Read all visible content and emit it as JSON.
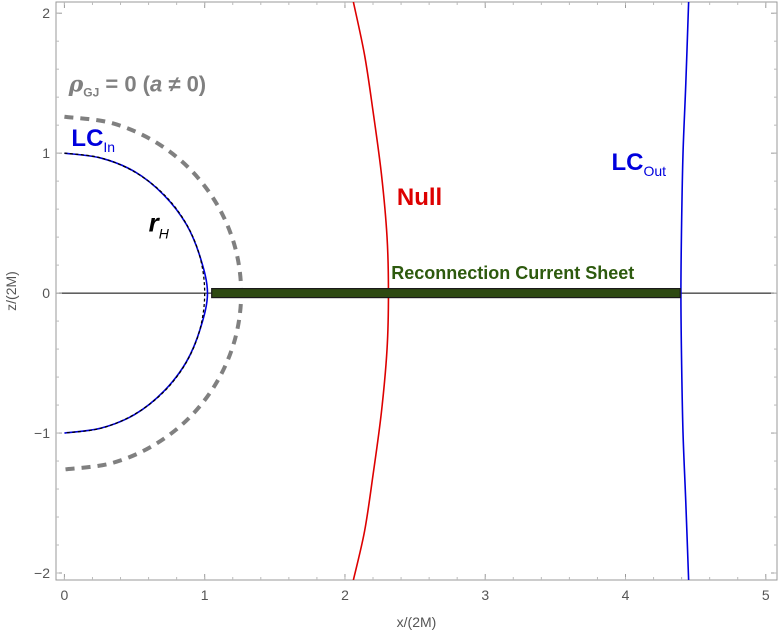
{
  "chart_data": {
    "type": "line",
    "xlabel": "x/(2M)",
    "ylabel": "z/(2M)",
    "xlim": [
      -0.06,
      5.08
    ],
    "ylim": [
      -2.05,
      2.08
    ],
    "x_ticks": [
      0,
      1,
      2,
      3,
      4,
      5
    ],
    "y_ticks": [
      -2,
      -1,
      0,
      1,
      2
    ],
    "grid": false,
    "colors": {
      "lc": "#0000dd",
      "null": "#dd0000",
      "horizon": "#000000",
      "rho_gj": "#808080",
      "sheet_fill": "#2e4a12",
      "sheet_edge": "#1a1a1a",
      "sheet_label": "#2d5a0e"
    },
    "series": [
      {
        "key": "lc_in",
        "style": "solid",
        "points": [
          [
            0,
            1.0
          ],
          [
            0.26,
            0.965
          ],
          [
            0.5,
            0.868
          ],
          [
            0.71,
            0.7
          ],
          [
            0.87,
            0.49
          ],
          [
            0.97,
            0.25
          ],
          [
            1.02,
            0.0
          ],
          [
            0.97,
            -0.25
          ],
          [
            0.87,
            -0.49
          ],
          [
            0.71,
            -0.7
          ],
          [
            0.5,
            -0.868
          ],
          [
            0.26,
            -0.965
          ],
          [
            0,
            -1.0
          ]
        ]
      },
      {
        "key": "horizon",
        "style": "dotted",
        "points": [
          [
            0,
            1.0
          ],
          [
            0.26,
            0.966
          ],
          [
            0.5,
            0.866
          ],
          [
            0.707,
            0.707
          ],
          [
            0.866,
            0.5
          ],
          [
            0.966,
            0.26
          ],
          [
            1.0,
            0.0
          ],
          [
            0.966,
            -0.26
          ],
          [
            0.866,
            -0.5
          ],
          [
            0.707,
            -0.707
          ],
          [
            0.5,
            -0.866
          ],
          [
            0.26,
            -0.966
          ],
          [
            0,
            -1.0
          ]
        ]
      },
      {
        "key": "rho_gj",
        "style": "dashed",
        "points": [
          [
            0,
            1.26
          ],
          [
            0.33,
            1.217
          ],
          [
            0.63,
            1.091
          ],
          [
            0.89,
            0.891
          ],
          [
            1.09,
            0.63
          ],
          [
            1.217,
            0.326
          ],
          [
            1.26,
            0.0
          ],
          [
            1.217,
            -0.326
          ],
          [
            1.09,
            -0.63
          ],
          [
            0.89,
            -0.891
          ],
          [
            0.63,
            -1.091
          ],
          [
            0.33,
            -1.217
          ],
          [
            0,
            -1.26
          ]
        ]
      },
      {
        "key": "null",
        "style": "solid",
        "points": [
          [
            2.06,
            2.08
          ],
          [
            2.14,
            1.7
          ],
          [
            2.2,
            1.3
          ],
          [
            2.26,
            0.85
          ],
          [
            2.3,
            0.4
          ],
          [
            2.31,
            0.0
          ],
          [
            2.3,
            -0.4
          ],
          [
            2.26,
            -0.85
          ],
          [
            2.2,
            -1.3
          ],
          [
            2.14,
            -1.7
          ],
          [
            2.06,
            -2.05
          ]
        ]
      },
      {
        "key": "lc_out",
        "style": "solid",
        "points": [
          [
            4.45,
            2.08
          ],
          [
            4.43,
            1.5
          ],
          [
            4.41,
            1.0
          ],
          [
            4.4,
            0.5
          ],
          [
            4.395,
            0.0
          ],
          [
            4.4,
            -0.5
          ],
          [
            4.41,
            -1.0
          ],
          [
            4.43,
            -1.5
          ],
          [
            4.45,
            -2.05
          ]
        ]
      }
    ],
    "current_sheet": {
      "x_start": 1.05,
      "x_end": 4.39,
      "z": 0
    },
    "annotations": {
      "rho_gj": {
        "symbol": "ρ",
        "subscript": "GJ",
        "rest": " = 0  (",
        "a": "a",
        "tail": " ≠ 0)",
        "x": 0.03,
        "z": 1.44
      },
      "lc_in": {
        "main": "LC",
        "subscript": "In",
        "x": 0.05,
        "z": 1.05
      },
      "r_h": {
        "main": "r",
        "subscript": "H",
        "x": 0.6,
        "z": 0.44
      },
      "null": {
        "text": "Null",
        "x": 2.37,
        "z": 0.63
      },
      "lc_out": {
        "main": "LC",
        "subscript": "Out",
        "x": 3.9,
        "z": 0.88
      },
      "sheet": {
        "text": "Reconnection Current Sheet",
        "x": 2.33,
        "z": 0.1
      }
    }
  }
}
